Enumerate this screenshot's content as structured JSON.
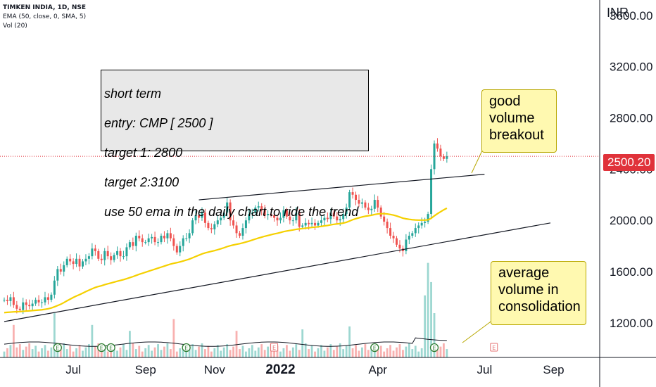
{
  "header": {
    "symbol": "TIMKEN INDIA, 1D, NSE",
    "indicator1": "EMA (50, close, 0, SMA, 5)",
    "indicator2": "Vol (20)"
  },
  "note": {
    "line1": "short term",
    "line2": "entry: CMP [ 2500 ]",
    "line3": "target 1: 2800",
    "line4": "target 2:3100",
    "line5": "use 50 ema in the daily chart to ride the trend"
  },
  "callouts": {
    "breakout": "good\nvolume\nbreakout",
    "consolidation": "average\nvolume in\nconsolidation"
  },
  "current_price": "2500.20",
  "colors": {
    "up": "#26a69a",
    "down": "#ef5350",
    "ema": "#f5d000",
    "price_line": "#e0323a",
    "earnings_badge": "#2e7d32"
  },
  "chart_data": {
    "type": "candlestick",
    "currency": "INR",
    "y_ticks": [
      "1200.00",
      "1600.00",
      "2000.00",
      "2400.00",
      "2800.00",
      "3200.00",
      "3600.00"
    ],
    "y_tick_values": [
      1200,
      1600,
      2000,
      2400,
      2800,
      3200,
      3600
    ],
    "ylim": [
      930,
      3720
    ],
    "x_ticks": [
      "Jul",
      "Sep",
      "Nov",
      "2022",
      "Apr",
      "Jul",
      "Sep"
    ],
    "x_tick_index": [
      22,
      45,
      67,
      88,
      119,
      153,
      175
    ],
    "series_close": [
      1380,
      1370,
      1400,
      1340,
      1310,
      1300,
      1360,
      1340,
      1330,
      1350,
      1380,
      1360,
      1360,
      1400,
      1380,
      1420,
      1530,
      1620,
      1600,
      1650,
      1700,
      1680,
      1660,
      1700,
      1640,
      1680,
      1700,
      1720,
      1780,
      1760,
      1700,
      1690,
      1760,
      1720,
      1690,
      1730,
      1760,
      1720,
      1720,
      1790,
      1830,
      1800,
      1880,
      1860,
      1830,
      1830,
      1860,
      1870,
      1830,
      1830,
      1880,
      1860,
      1900,
      1860,
      1800,
      1750,
      1800,
      1860,
      1860,
      1900,
      2000,
      2040,
      2020,
      2060,
      1980,
      1940,
      1930,
      1970,
      2000,
      2020,
      2060,
      2140,
      2000,
      1960,
      1900,
      1880,
      1940,
      2000,
      2050,
      2060,
      2100,
      2110,
      2080,
      2040,
      2050,
      2040,
      2020,
      2000,
      2020,
      2080,
      2030,
      2000,
      2000,
      2060,
      1950,
      1960,
      1980,
      1970,
      1980,
      1960,
      1980,
      2000,
      2020,
      2010,
      2060,
      2030,
      2000,
      2010,
      2050,
      2100,
      2220,
      2200,
      2160,
      2130,
      2140,
      2100,
      2080,
      2090,
      2160,
      2100,
      2030,
      1990,
      1940,
      1880,
      1860,
      1810,
      1780,
      1760,
      1850,
      1880,
      1900,
      1940,
      1960,
      1980,
      1990,
      2050,
      2400,
      2600,
      2560,
      2500,
      2480,
      2500
    ],
    "ema50": [
      1280,
      1282,
      1284,
      1286,
      1287,
      1288,
      1290,
      1292,
      1294,
      1296,
      1298,
      1300,
      1302,
      1306,
      1310,
      1316,
      1325,
      1335,
      1345,
      1358,
      1372,
      1385,
      1398,
      1410,
      1420,
      1432,
      1444,
      1455,
      1466,
      1476,
      1484,
      1490,
      1498,
      1505,
      1511,
      1518,
      1525,
      1531,
      1537,
      1545,
      1553,
      1561,
      1570,
      1579,
      1587,
      1595,
      1603,
      1611,
      1619,
      1627,
      1635,
      1643,
      1651,
      1659,
      1665,
      1670,
      1676,
      1683,
      1690,
      1698,
      1708,
      1718,
      1728,
      1738,
      1746,
      1752,
      1758,
      1764,
      1771,
      1778,
      1786,
      1795,
      1802,
      1808,
      1813,
      1818,
      1824,
      1831,
      1838,
      1846,
      1854,
      1862,
      1869,
      1876,
      1882,
      1888,
      1894,
      1899,
      1905,
      1912,
      1917,
      1921,
      1925,
      1930,
      1933,
      1936,
      1939,
      1942,
      1945,
      1947,
      1950,
      1953,
      1957,
      1960,
      1965,
      1969,
      1972,
      1975,
      1979,
      1985,
      1995,
      2005,
      2013,
      2020,
      2027,
      2032,
      2036,
      2040,
      2046,
      2050,
      2052,
      2052,
      2050,
      2046,
      2041,
      2034,
      2026,
      2017,
      2012,
      2008,
      2005,
      2003,
      2002,
      2002,
      2002,
      2004,
      2016,
      2035,
      2052,
      2067,
      2082,
      2095
    ],
    "volume_spikes": [
      {
        "index": 3,
        "value": 2.2
      },
      {
        "index": 16,
        "value": 3.0
      },
      {
        "index": 28,
        "value": 2.2
      },
      {
        "index": 40,
        "value": 1.8
      },
      {
        "index": 54,
        "value": 2.6
      },
      {
        "index": 74,
        "value": 1.8
      },
      {
        "index": 95,
        "value": 1.9
      },
      {
        "index": 110,
        "value": 2.1
      },
      {
        "index": 134,
        "value": 4.2
      },
      {
        "index": 135,
        "value": 6.4
      },
      {
        "index": 136,
        "value": 5.1
      },
      {
        "index": 137,
        "value": 3.0
      }
    ],
    "trendline_upper": {
      "from": [
        62,
        2160
      ],
      "to": [
        153,
        2360
      ]
    },
    "trendline_lower": {
      "from": [
        0,
        1210
      ],
      "to": [
        174,
        1980
      ]
    },
    "earnings_markers": [
      17,
      31,
      34,
      58,
      118,
      137
    ],
    "dividend_markers": [
      86,
      156
    ]
  }
}
